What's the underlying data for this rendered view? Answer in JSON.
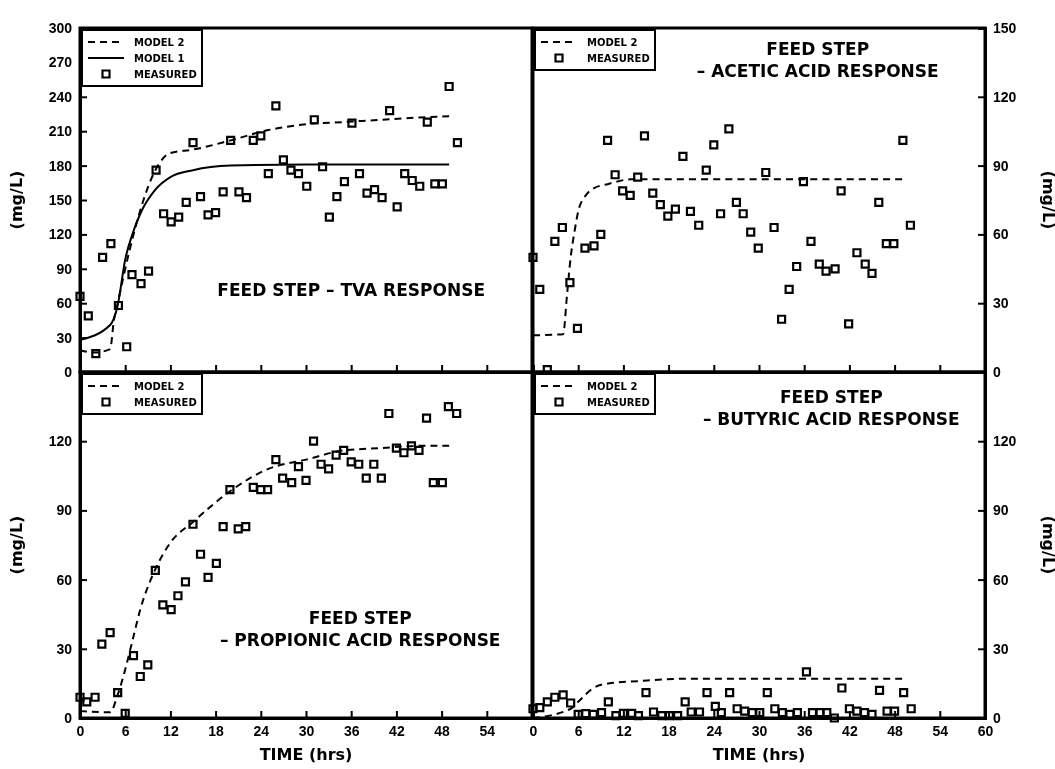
{
  "chart_data": [
    {
      "type": "scatter",
      "title": "FEED STEP – TVA RESPONSE",
      "ylabel": "(mg/L)",
      "xlim": [
        0,
        60
      ],
      "xticks": [
        0,
        6,
        12,
        18,
        24,
        30,
        36,
        42,
        48,
        54,
        60
      ],
      "ylim": [
        0,
        300
      ],
      "yticks": [
        0,
        30,
        60,
        90,
        120,
        150,
        180,
        210,
        240,
        270,
        300
      ],
      "tick_labels": "y",
      "legend": "top left",
      "grid": false,
      "series": [
        {
          "name": "MODEL 2",
          "type": "line",
          "line_style": "dashed",
          "color": "#000000",
          "x": [
            0,
            2,
            4,
            4.5,
            5,
            6.5,
            8,
            10,
            12,
            15,
            20,
            25,
            30,
            35,
            40,
            45,
            49
          ],
          "values": [
            19,
            17,
            20,
            45,
            60,
            104,
            141,
            176,
            191,
            194,
            202,
            211,
            216,
            218,
            220,
            222,
            223
          ]
        },
        {
          "name": "MODEL 1",
          "type": "line",
          "line_style": "solid",
          "color": "#000000",
          "x": [
            0,
            4,
            5,
            6,
            7,
            8,
            10,
            12,
            15,
            20,
            30,
            49
          ],
          "values": [
            28,
            41,
            58,
            98,
            121,
            138,
            159,
            170,
            176,
            180,
            181,
            181
          ]
        },
        {
          "name": "MEASURED",
          "marker": "square",
          "color": "#000000",
          "x": [
            0,
            1.1,
            2.1,
            3,
            4.1,
            5.1,
            6.2,
            6.9,
            8.1,
            9.1,
            10.1,
            11.1,
            12.1,
            13.1,
            14.1,
            15,
            16,
            17,
            18,
            19,
            20,
            21.1,
            22.1,
            23,
            24,
            25,
            26,
            27,
            28,
            29,
            30.1,
            31.1,
            32.2,
            33.1,
            34.1,
            35.1,
            36.1,
            37.1,
            38.1,
            39.1,
            40.1,
            41.1,
            42.1,
            43.1,
            44.1,
            45.1,
            46.1,
            47.1,
            48.1,
            49,
            50.1
          ],
          "values": [
            66,
            49,
            16,
            100,
            112,
            58,
            22,
            85,
            77,
            88,
            176,
            138,
            131,
            135,
            148,
            200,
            153,
            137,
            139,
            157,
            202,
            157,
            152,
            202,
            206,
            173,
            232,
            185,
            176,
            173,
            162,
            220,
            179,
            135,
            153,
            166,
            217,
            173,
            156,
            159,
            152,
            228,
            144,
            173,
            167,
            162,
            218,
            164,
            164,
            249,
            200
          ]
        }
      ]
    },
    {
      "type": "scatter",
      "title": "FEED STEP",
      "subtitle": "– ACETIC ACID RESPONSE",
      "ylabel": "(mg/L)",
      "xlim": [
        0,
        60
      ],
      "xticks": [
        0,
        6,
        12,
        18,
        24,
        30,
        36,
        42,
        48,
        54,
        60
      ],
      "ylim": [
        0,
        150
      ],
      "yticks": [
        0,
        30,
        60,
        90,
        120,
        150
      ],
      "tick_labels": "y",
      "legend": "top left",
      "grid": false,
      "series": [
        {
          "name": "MODEL 2",
          "type": "line",
          "line_style": "dashed",
          "color": "#000000",
          "x": [
            0,
            4,
            4.5,
            5,
            5.5,
            6,
            7,
            8,
            10,
            13,
            20,
            30,
            49
          ],
          "values": [
            16,
            16.5,
            33,
            50,
            61,
            70,
            77,
            80,
            82,
            84,
            84,
            84,
            84
          ]
        },
        {
          "name": "MEASURED",
          "marker": "square",
          "color": "#000000",
          "x": [
            0,
            0.9,
            1.9,
            2.9,
            3.9,
            4.9,
            5.9,
            6.9,
            8.1,
            9,
            9.9,
            10.9,
            11.9,
            12.9,
            13.9,
            14.8,
            15.9,
            16.9,
            17.9,
            18.9,
            19.9,
            20.9,
            22,
            23,
            24,
            24.9,
            26,
            27,
            27.9,
            28.9,
            29.9,
            30.9,
            32,
            33,
            34,
            35,
            35.9,
            36.9,
            38,
            38.9,
            40.1,
            40.9,
            41.9,
            43,
            44.1,
            45,
            45.9,
            46.9,
            47.9,
            49.1,
            50.1
          ],
          "values": [
            50,
            36,
            1,
            57,
            63,
            39,
            19,
            54,
            55,
            60,
            101,
            86,
            79,
            77,
            85,
            103,
            78,
            73,
            68,
            71,
            94,
            70,
            64,
            88,
            99,
            69,
            106,
            74,
            69,
            61,
            54,
            87,
            63,
            23,
            36,
            46,
            83,
            57,
            47,
            44,
            45,
            79,
            21,
            52,
            47,
            43,
            74,
            56,
            56,
            101,
            64
          ]
        }
      ]
    },
    {
      "type": "scatter",
      "title": "FEED STEP",
      "subtitle": "– PROPIONIC ACID RESPONSE",
      "xlabel": "TIME (hrs)",
      "ylabel": "(mg/L)",
      "xlim": [
        0,
        60
      ],
      "xticks": [
        0,
        6,
        12,
        18,
        24,
        30,
        36,
        42,
        48,
        54
      ],
      "ylim": [
        0,
        150
      ],
      "yticks": [
        0,
        30,
        60,
        90,
        120
      ],
      "legend": "top left",
      "grid": false,
      "series": [
        {
          "name": "MODEL 2",
          "type": "line",
          "line_style": "dashed",
          "color": "#000000",
          "x": [
            0,
            4,
            5,
            6,
            7,
            8,
            10,
            12,
            15,
            20,
            25,
            30,
            35,
            40,
            45,
            49
          ],
          "values": [
            3,
            2.5,
            10,
            21,
            34,
            47,
            64.5,
            76,
            85,
            98.5,
            108,
            112,
            116,
            117,
            118,
            118
          ]
        },
        {
          "name": "MEASURED",
          "marker": "square",
          "color": "#000000",
          "x": [
            0,
            0.9,
            2,
            2.9,
            4,
            5,
            6,
            7.1,
            8,
            9,
            10,
            11,
            12.1,
            13,
            14,
            15,
            16,
            17,
            18.1,
            19,
            19.9,
            21,
            22,
            23,
            24,
            24.9,
            26,
            26.9,
            28.1,
            29,
            30,
            31,
            32,
            33,
            34,
            35,
            36,
            37,
            38,
            39,
            40,
            41,
            42,
            43,
            44,
            45,
            46,
            46.9,
            48.1,
            48.9,
            50
          ],
          "values": [
            9,
            7,
            9,
            32,
            37,
            11,
            2,
            27,
            18,
            23,
            64,
            49,
            47,
            53,
            59,
            84,
            71,
            61,
            67,
            83,
            99,
            82,
            83,
            100,
            99,
            99,
            112,
            104,
            102,
            109,
            103,
            120,
            110,
            108,
            114,
            116,
            111,
            110,
            104,
            110,
            104,
            132,
            117,
            115,
            118,
            116,
            130,
            102,
            102,
            135,
            132
          ]
        }
      ]
    },
    {
      "type": "scatter",
      "title": "FEED STEP",
      "subtitle": "– BUTYRIC ACID RESPONSE",
      "xlabel": "TIME (hrs)",
      "ylabel": "(mg/L)",
      "xlim": [
        0,
        60
      ],
      "xticks": [
        0,
        6,
        12,
        18,
        24,
        30,
        36,
        42,
        48,
        54,
        60
      ],
      "ylim": [
        0,
        150
      ],
      "yticks": [
        0,
        30,
        60,
        90,
        120
      ],
      "legend": "top left",
      "grid": false,
      "series": [
        {
          "name": "MODEL 2",
          "type": "line",
          "line_style": "dashed",
          "color": "#000000",
          "x": [
            0,
            5,
            6,
            8,
            10,
            14,
            20,
            30,
            49
          ],
          "values": [
            0,
            4,
            7,
            13,
            15,
            16,
            17,
            17,
            17
          ]
        },
        {
          "name": "MEASURED",
          "marker": "square",
          "color": "#000000",
          "x": [
            0,
            0.9,
            1.9,
            2.9,
            4,
            5,
            6,
            7,
            8,
            9.1,
            10,
            11,
            12,
            13.1,
            14,
            15,
            16,
            17.1,
            18.1,
            19.2,
            20.2,
            21,
            22.1,
            23.1,
            24.2,
            25,
            26.1,
            27.1,
            28.1,
            29.1,
            30.1,
            31.1,
            32.1,
            33.1,
            34.1,
            35.1,
            36.3,
            37.1,
            38.1,
            39,
            40,
            41,
            42,
            43,
            44,
            45,
            46,
            47,
            48,
            49.2,
            50.2
          ],
          "values": [
            4,
            4.5,
            7,
            9,
            10,
            6.5,
            1.6,
            1.9,
            1.6,
            2.3,
            7,
            1,
            2,
            2,
            1,
            11,
            2.6,
            1,
            1,
            1,
            7,
            2.6,
            2.6,
            11,
            5,
            2.3,
            11,
            4,
            3,
            2.3,
            2.3,
            11,
            4,
            2.3,
            1.6,
            2.3,
            20,
            2.3,
            2.3,
            2.3,
            0,
            13,
            4,
            3,
            2.3,
            1.6,
            12,
            3,
            3,
            11,
            4
          ]
        }
      ]
    }
  ]
}
